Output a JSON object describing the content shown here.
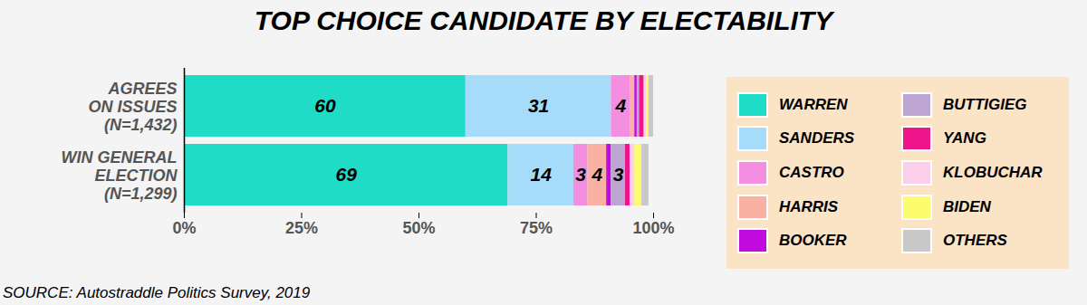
{
  "chart_data": {
    "type": "bar",
    "title": "TOP CHOICE CANDIDATE BY ELECTABILITY",
    "source": "SOURCE: Autostraddle Politics Survey, 2019",
    "orientation": "horizontal",
    "stacked": true,
    "data_labels": true,
    "legend": "right",
    "categories": [
      "AGREES\nON ISSUES\n(N=1,432)",
      "WIN GENERAL\nELECTION\n(N=1,299)"
    ],
    "series": [
      {
        "name": "WARREN",
        "color": "#1fdcc6",
        "values": [
          60,
          69
        ],
        "value_labels": [
          "60",
          "69"
        ]
      },
      {
        "name": "SANDERS",
        "color": "#a6dbfa",
        "values": [
          31,
          14
        ],
        "value_labels": [
          "31",
          "14"
        ]
      },
      {
        "name": "CASTRO",
        "color": "#f38ee0",
        "values": [
          4,
          3
        ],
        "value_labels": [
          "4",
          "3"
        ]
      },
      {
        "name": "HARRIS",
        "color": "#f8b1a2",
        "values": [
          1,
          4
        ],
        "value_labels": [
          null,
          "4"
        ]
      },
      {
        "name": "BOOKER",
        "color": "#c00ade",
        "values": [
          0.5,
          1
        ],
        "value_labels": [
          null,
          null
        ]
      },
      {
        "name": "BUTTIGIEG",
        "color": "#bea6d4",
        "values": [
          0.5,
          3
        ],
        "value_labels": [
          null,
          "3"
        ]
      },
      {
        "name": "YANG",
        "color": "#f0148a",
        "values": [
          1,
          1
        ],
        "value_labels": [
          null,
          null
        ]
      },
      {
        "name": "KLOBUCHAR",
        "color": "#fcd0ea",
        "values": [
          0.5,
          1
        ],
        "value_labels": [
          null,
          null
        ]
      },
      {
        "name": "BIDEN",
        "color": "#fcfc6c",
        "values": [
          0.5,
          1.5
        ],
        "value_labels": [
          null,
          null
        ]
      },
      {
        "name": "OTHERS",
        "color": "#c8c8c8",
        "values": [
          1,
          1.5
        ],
        "value_labels": [
          null,
          null
        ]
      }
    ],
    "xlim": [
      0,
      100
    ],
    "xticks": [
      {
        "value": 0,
        "label": "0%"
      },
      {
        "value": 25,
        "label": "25%"
      },
      {
        "value": 50,
        "label": "50%"
      },
      {
        "value": 75,
        "label": "75%"
      },
      {
        "value": 100,
        "label": "100%"
      }
    ]
  }
}
